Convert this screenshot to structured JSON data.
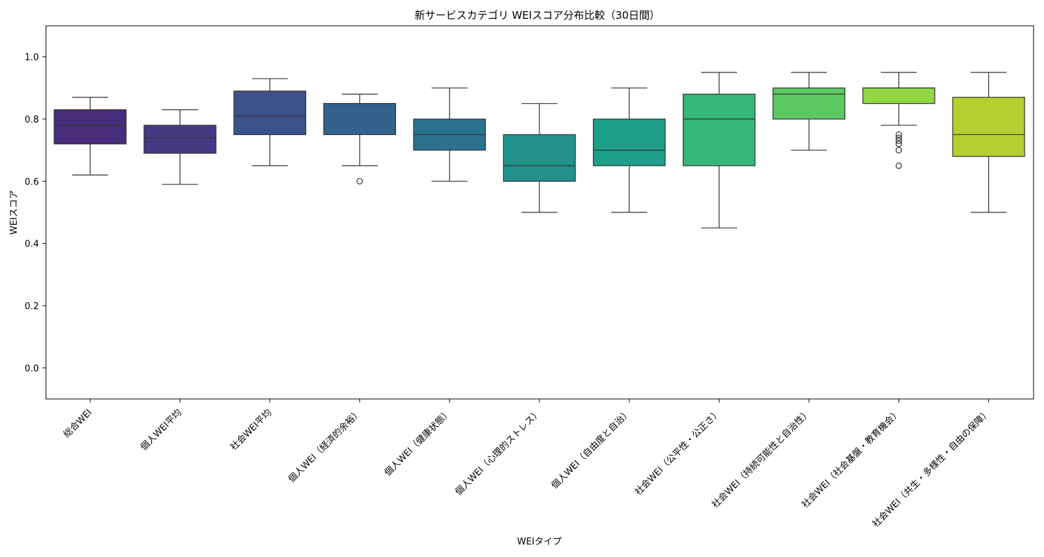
{
  "chart_data": {
    "type": "box",
    "title": "新サービスカテゴリ WEIスコア分布比較（30日間）",
    "xlabel": "WEIタイプ",
    "ylabel": "WEIスコア",
    "ylim": [
      -0.1,
      1.1
    ],
    "yticks": [
      "0.0",
      "0.2",
      "0.4",
      "0.6",
      "0.8",
      "1.0"
    ],
    "grid": false,
    "categories": [
      "総合WEI",
      "個人WEI平均",
      "社会WEI平均",
      "個人WEI（経済的余裕）",
      "個人WEI（健康状態）",
      "個人WEI（心理的ストレス）",
      "個人WEI（自由度と自治）",
      "社会WEI（公平性・公正さ）",
      "社会WEI（持続可能性と自治性）",
      "社会WEI（社会基盤・教育機会）",
      "社会WEI（共生・多様性・自由の保障）"
    ],
    "boxes": [
      {
        "whisker_low": 0.62,
        "q1": 0.72,
        "median": 0.78,
        "q3": 0.83,
        "whisker_high": 0.87,
        "outliers": [],
        "color": "#472d7b"
      },
      {
        "whisker_low": 0.59,
        "q1": 0.69,
        "median": 0.74,
        "q3": 0.78,
        "whisker_high": 0.83,
        "outliers": [],
        "color": "#443983"
      },
      {
        "whisker_low": 0.65,
        "q1": 0.75,
        "median": 0.81,
        "q3": 0.89,
        "whisker_high": 0.93,
        "outliers": [],
        "color": "#3b528b"
      },
      {
        "whisker_low": 0.65,
        "q1": 0.75,
        "median": 0.85,
        "q3": 0.85,
        "whisker_high": 0.88,
        "outliers": [
          0.6
        ],
        "color": "#33638d"
      },
      {
        "whisker_low": 0.6,
        "q1": 0.7,
        "median": 0.75,
        "q3": 0.8,
        "whisker_high": 0.9,
        "outliers": [],
        "color": "#2c728e"
      },
      {
        "whisker_low": 0.5,
        "q1": 0.6,
        "median": 0.65,
        "q3": 0.75,
        "whisker_high": 0.85,
        "outliers": [],
        "color": "#21918c"
      },
      {
        "whisker_low": 0.5,
        "q1": 0.65,
        "median": 0.7,
        "q3": 0.8,
        "whisker_high": 0.9,
        "outliers": [],
        "color": "#1f9e89"
      },
      {
        "whisker_low": 0.45,
        "q1": 0.65,
        "median": 0.8,
        "q3": 0.88,
        "whisker_high": 0.95,
        "outliers": [],
        "color": "#35b779"
      },
      {
        "whisker_low": 0.7,
        "q1": 0.8,
        "median": 0.88,
        "q3": 0.9,
        "whisker_high": 0.95,
        "outliers": [],
        "color": "#5ec962"
      },
      {
        "whisker_low": 0.78,
        "q1": 0.85,
        "median": 0.9,
        "q3": 0.9,
        "whisker_high": 0.95,
        "outliers": [
          0.75,
          0.74,
          0.73,
          0.72,
          0.7,
          0.65
        ],
        "color": "#90d743"
      },
      {
        "whisker_low": 0.5,
        "q1": 0.68,
        "median": 0.75,
        "q3": 0.87,
        "whisker_high": 0.95,
        "outliers": [],
        "color": "#b5cf2e"
      }
    ]
  }
}
